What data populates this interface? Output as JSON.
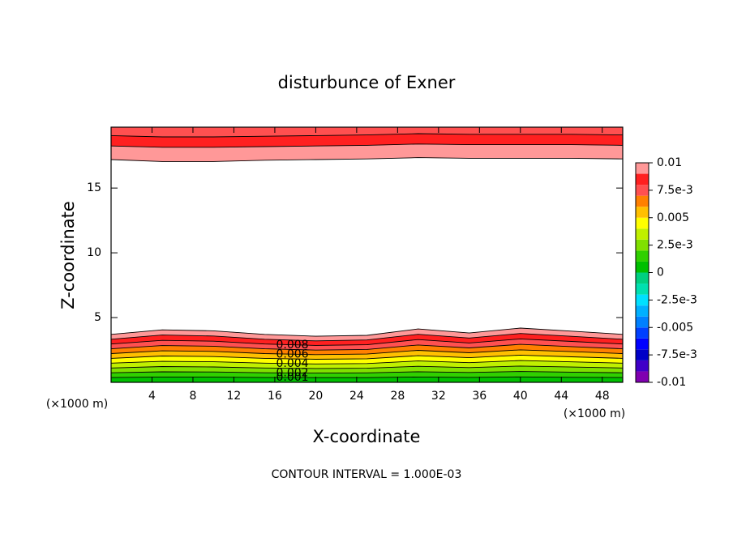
{
  "chart_data": {
    "type": "contour",
    "title": "disturbunce of Exner",
    "xlabel": "X-coordinate",
    "ylabel": "Z-coordinate",
    "xunit": "(×1000 m)",
    "yunit": "(×1000 m)",
    "footnote": "CONTOUR INTERVAL = 1.000E-03",
    "xlim": [
      0,
      50
    ],
    "ylim": [
      0,
      19.7
    ],
    "xticks": [
      4,
      8,
      12,
      16,
      20,
      24,
      28,
      32,
      36,
      40,
      44,
      48
    ],
    "yticks": [
      5,
      10,
      15
    ],
    "x": [
      0,
      5,
      10,
      15,
      20,
      25,
      30,
      35,
      40,
      45,
      50
    ],
    "contours": [
      {
        "level": 0.001,
        "labeled": true,
        "z": [
          0.37,
          0.41,
          0.4,
          0.37,
          0.36,
          0.36,
          0.41,
          0.38,
          0.42,
          0.39,
          0.37
        ]
      },
      {
        "level": 0.002,
        "labeled": true,
        "z": [
          0.74,
          0.81,
          0.8,
          0.74,
          0.71,
          0.73,
          0.82,
          0.76,
          0.84,
          0.79,
          0.74
        ]
      },
      {
        "level": 0.003,
        "labeled": false,
        "z": [
          1.11,
          1.22,
          1.19,
          1.11,
          1.07,
          1.09,
          1.24,
          1.14,
          1.26,
          1.18,
          1.11
        ]
      },
      {
        "level": 0.004,
        "labeled": true,
        "z": [
          1.48,
          1.62,
          1.59,
          1.48,
          1.42,
          1.45,
          1.65,
          1.52,
          1.68,
          1.58,
          1.48
        ]
      },
      {
        "level": 0.005,
        "labeled": false,
        "z": [
          1.85,
          2.03,
          1.99,
          1.85,
          1.78,
          1.82,
          2.06,
          1.9,
          2.1,
          1.97,
          1.85
        ]
      },
      {
        "level": 0.006,
        "labeled": true,
        "z": [
          2.22,
          2.43,
          2.39,
          2.22,
          2.14,
          2.18,
          2.47,
          2.28,
          2.51,
          2.37,
          2.22
        ]
      },
      {
        "level": 0.007,
        "labeled": false,
        "z": [
          2.59,
          2.84,
          2.79,
          2.59,
          2.49,
          2.54,
          2.88,
          2.66,
          2.93,
          2.76,
          2.59
        ]
      },
      {
        "level": 0.008,
        "labeled": true,
        "z": [
          2.96,
          3.24,
          3.18,
          2.96,
          2.85,
          2.9,
          3.3,
          3.04,
          3.35,
          3.16,
          2.96
        ]
      },
      {
        "level": 0.009,
        "labeled": false,
        "z": [
          3.33,
          3.65,
          3.58,
          3.33,
          3.2,
          3.27,
          3.71,
          3.42,
          3.77,
          3.55,
          3.33
        ]
      },
      {
        "level": 0.01,
        "labeled": false,
        "z": [
          3.7,
          4.05,
          3.98,
          3.7,
          3.56,
          3.63,
          4.12,
          3.81,
          4.19,
          3.95,
          3.7
        ]
      }
    ],
    "top_contours": [
      {
        "level": 0.01,
        "z": [
          17.2,
          17.05,
          17.05,
          17.15,
          17.2,
          17.25,
          17.35,
          17.3,
          17.3,
          17.3,
          17.25
        ]
      },
      {
        "level": 0.009,
        "z": [
          18.25,
          18.15,
          18.15,
          18.2,
          18.25,
          18.3,
          18.4,
          18.35,
          18.35,
          18.35,
          18.3
        ]
      },
      {
        "level": 0.008,
        "z": [
          19.05,
          18.95,
          18.95,
          19.0,
          19.05,
          19.1,
          19.2,
          19.15,
          19.15,
          19.15,
          19.1
        ]
      }
    ],
    "colorbar": {
      "levels": [
        -0.01,
        -0.009,
        -0.008,
        -0.007,
        -0.006,
        -0.005,
        -0.004,
        -0.003,
        -0.002,
        -0.001,
        0,
        0.001,
        0.002,
        0.003,
        0.004,
        0.005,
        0.006,
        0.007,
        0.008,
        0.009,
        0.01
      ],
      "colors": [
        "#8000b0",
        "#4000c8",
        "#0000c8",
        "#0000ff",
        "#0040ff",
        "#0080ff",
        "#00b0ff",
        "#00e0ff",
        "#00e0b0",
        "#00d080",
        "#00c000",
        "#30d000",
        "#80e000",
        "#c0f000",
        "#ffff00",
        "#ffc000",
        "#ff8000",
        "#ff5050",
        "#ff2020",
        "#ff9898"
      ],
      "ticks": [
        0.01,
        {
          "value": 0.0075,
          "label": "7.5e-3"
        },
        0.005,
        {
          "value": 0.0025,
          "label": "2.5e-3"
        },
        0,
        {
          "value": -0.0025,
          "label": "-2.5e-3"
        },
        -0.005,
        {
          "value": -0.0075,
          "label": "-7.5e-3"
        },
        -0.01
      ]
    }
  }
}
